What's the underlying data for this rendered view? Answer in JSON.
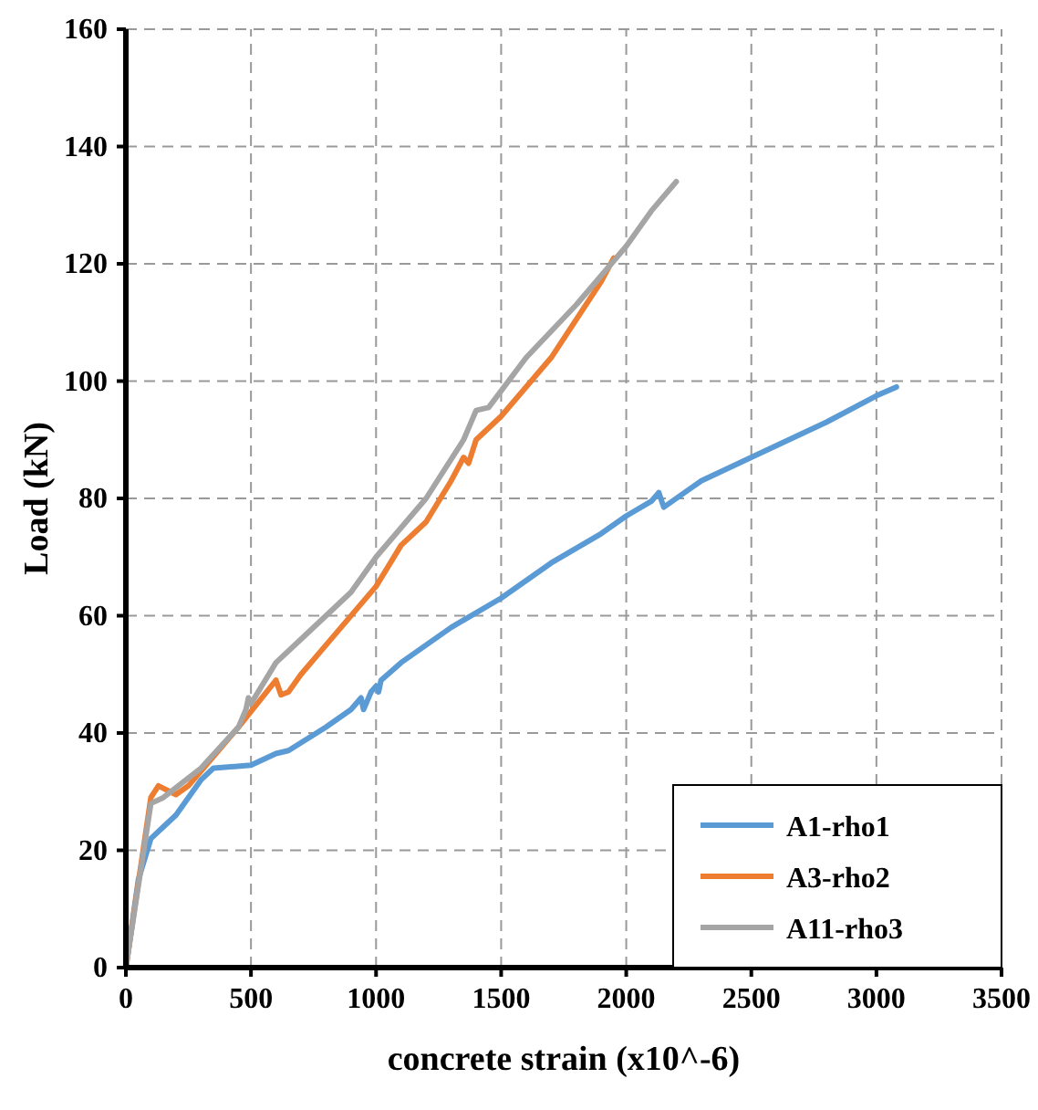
{
  "chart_data": {
    "type": "line",
    "xlabel": "concrete strain (x10^-6)",
    "ylabel": "Load (kN)",
    "xlim": [
      0,
      3500
    ],
    "xticks": [
      0,
      500,
      1000,
      1500,
      2000,
      2500,
      3000,
      3500
    ],
    "ylim": [
      0,
      160
    ],
    "yticks": [
      0,
      20,
      40,
      60,
      80,
      100,
      120,
      140,
      160
    ],
    "grid": true,
    "legend": "bottom right",
    "marker": "none",
    "line_style": "solid",
    "series": [
      {
        "name": "A1-rho1",
        "color": "#5b9bd5",
        "x": [
          0,
          50,
          100,
          150,
          200,
          300,
          350,
          500,
          600,
          650,
          800,
          900,
          940,
          950,
          980,
          1000,
          1010,
          1020,
          1100,
          1300,
          1500,
          1700,
          1900,
          2000,
          2100,
          2130,
          2150,
          2300,
          2500,
          2800,
          3000,
          3080
        ],
        "values": [
          0,
          15,
          22,
          24,
          26,
          32,
          34,
          34.5,
          36.5,
          37,
          41,
          44,
          46,
          44,
          47,
          48,
          47,
          49,
          52,
          58,
          63,
          69,
          74,
          77,
          79.5,
          81,
          78.5,
          83,
          87,
          93,
          97.5,
          99
        ]
      },
      {
        "name": "A3-rho2",
        "color": "#ed7d31",
        "x": [
          0,
          100,
          130,
          200,
          250,
          350,
          450,
          600,
          620,
          650,
          700,
          800,
          1000,
          1100,
          1200,
          1300,
          1350,
          1370,
          1400,
          1500,
          1700,
          1900,
          1950
        ],
        "values": [
          0,
          29,
          31,
          29.5,
          31,
          36,
          41,
          49,
          46.5,
          47,
          50,
          55,
          65,
          72,
          76,
          83,
          87,
          86,
          90,
          94,
          104,
          117,
          121
        ]
      },
      {
        "name": "A11-rho3",
        "color": "#a5a5a5",
        "x": [
          0,
          100,
          150,
          300,
          450,
          480,
          490,
          500,
          600,
          700,
          900,
          1000,
          1200,
          1350,
          1400,
          1450,
          1600,
          1800,
          2000,
          2100,
          2200
        ],
        "values": [
          0,
          28,
          29,
          34,
          41,
          44,
          46,
          45,
          52,
          56,
          64,
          70,
          80,
          90,
          95,
          95.5,
          104,
          113,
          123,
          129,
          134
        ]
      }
    ]
  }
}
